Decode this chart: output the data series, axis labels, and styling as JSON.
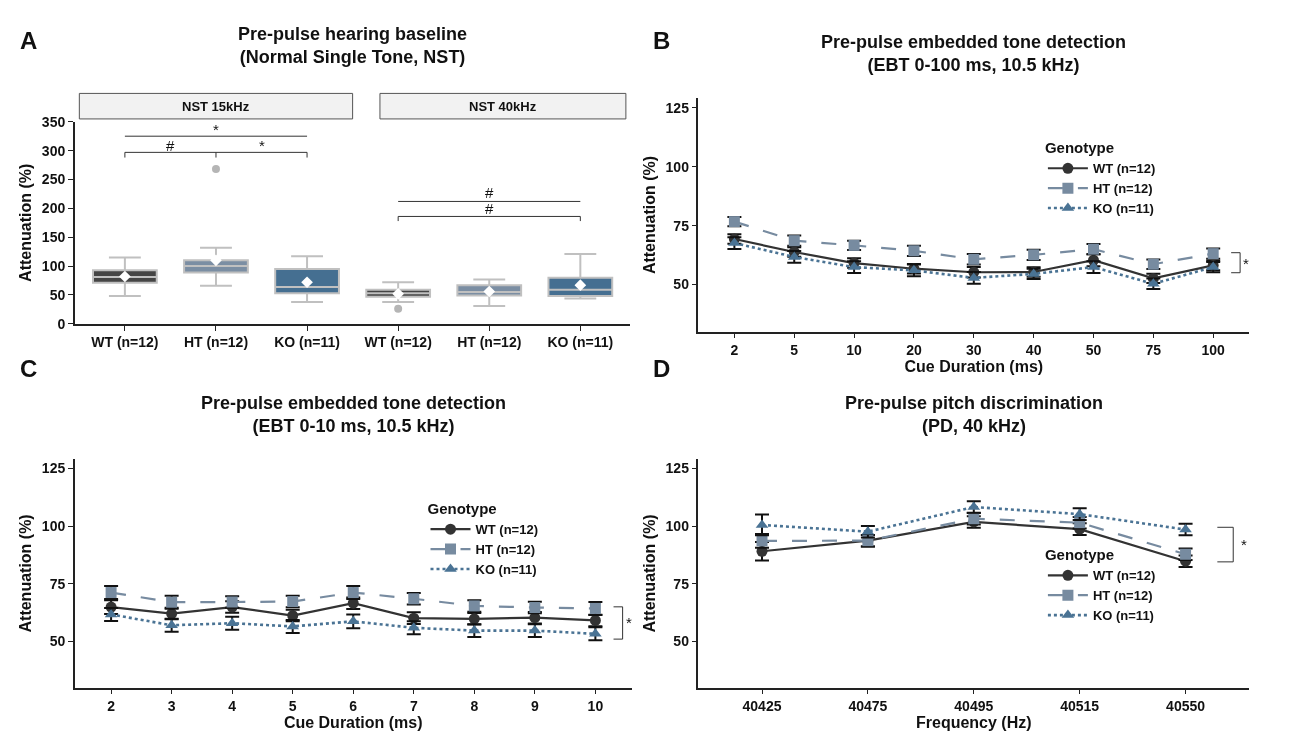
{
  "chart_data": [
    {
      "type": "box",
      "title": "Pre-pulse hearing baseline\n(Normal Single Tone, NST)",
      "ylabel": "Attenuation (%)",
      "categories": [
        "WT (n=12)",
        "HT (n=12)",
        "KO (n=11)",
        "WT (n=12)",
        "HT (n=12)",
        "KO (n=11)"
      ],
      "colors": [
        "#454545",
        "#7b8ea3",
        "#456f91",
        "#454545",
        "#7b8ea3",
        "#456f91"
      ],
      "boxes": [
        {
          "low": 48,
          "q1": 71,
          "median": 81,
          "q3": 93,
          "high": 115,
          "mean": 82
        },
        {
          "low": 66,
          "q1": 89,
          "median": 100,
          "q3": 110,
          "high": 132,
          "mean": 110,
          "outliers": [
            268
          ]
        },
        {
          "low": 38,
          "q1": 53,
          "median": 64,
          "q3": 95,
          "high": 117,
          "mean": 72
        },
        {
          "low": 38,
          "q1": 47,
          "median": 53,
          "q3": 59,
          "high": 72,
          "mean": 52,
          "outliers": [
            26
          ]
        },
        {
          "low": 31,
          "q1": 49,
          "median": 55,
          "q3": 67,
          "high": 77,
          "mean": 56
        },
        {
          "low": 44,
          "q1": 48,
          "median": 59,
          "q3": 80,
          "high": 121,
          "mean": 67
        }
      ],
      "ylim": [
        0,
        350
      ],
      "yticks": [
        0,
        50,
        100,
        150,
        200,
        250,
        300,
        350
      ],
      "annotations": [
        "A",
        "NST 15kHz",
        "NST 40kHz",
        "*",
        "#",
        "*",
        "#",
        "#"
      ]
    },
    {
      "type": "line",
      "title": "Pre-pulse embedded tone detection\n(EBT 0-100 ms, 10.5 kHz)",
      "xlabel": "Cue Duration (ms)",
      "ylabel": "Attenuation (%)",
      "legend_title": "Genotype",
      "legend": "top right",
      "categories": [
        "2",
        "5",
        "10",
        "20",
        "30",
        "40",
        "50",
        "75",
        "100"
      ],
      "ylim": [
        30,
        129
      ],
      "yticks": [
        50,
        75,
        100,
        125
      ],
      "series": [
        {
          "name": "WT (n=12)",
          "color": "#333333",
          "marker": "circle",
          "line_style": "solid",
          "values": [
            69.3,
            63.8,
            59.1,
            56.7,
            55.2,
            55.3,
            60.3,
            52.6,
            58.1
          ],
          "errors": [
            2,
            2,
            2,
            2,
            2.2,
            2,
            2.5,
            2,
            2
          ]
        },
        {
          "name": "HT (n=12)",
          "color": "#778ba0",
          "marker": "square",
          "line_style": "dashed",
          "values": [
            76.7,
            68.6,
            66.6,
            64.3,
            60.7,
            62.6,
            65,
            58.6,
            63.1
          ],
          "errors": [
            2,
            2.2,
            2,
            2.2,
            2.2,
            2.2,
            2.2,
            2,
            2.2
          ]
        },
        {
          "name": "KO (n=11)",
          "color": "#4a7394",
          "marker": "triangle",
          "line_style": "dotted",
          "values": [
            67.6,
            61.7,
            57.4,
            56,
            52.8,
            54.5,
            57.4,
            50.3,
            57.4
          ],
          "errors": [
            2.5,
            2.5,
            2.5,
            2.5,
            2.5,
            2.2,
            2.5,
            2.2,
            2.2
          ]
        }
      ],
      "annotations": [
        "B",
        "*"
      ]
    },
    {
      "type": "line",
      "title": "Pre-pulse embedded tone detection\n(EBT 0-10 ms, 10.5 kHz)",
      "xlabel": "Cue Duration (ms)",
      "ylabel": "Attenuation (%)",
      "legend_title": "Genotype",
      "legend": "top right",
      "categories": [
        "2",
        "3",
        "4",
        "5",
        "6",
        "7",
        "8",
        "9",
        "10"
      ],
      "ylim": [
        30,
        129
      ],
      "yticks": [
        50,
        75,
        100,
        125
      ],
      "series": [
        {
          "name": "WT (n=12)",
          "color": "#333333",
          "marker": "circle",
          "line_style": "solid",
          "values": [
            64.9,
            62.1,
            64.9,
            61.2,
            66.6,
            60.1,
            59.8,
            60.3,
            59.1
          ],
          "errors": [
            3,
            2.5,
            2.5,
            2.5,
            2.5,
            2.5,
            2.5,
            2.5,
            2.5
          ]
        },
        {
          "name": "HT (n=12)",
          "color": "#778ba0",
          "marker": "square",
          "line_style": "dashed",
          "values": [
            71.2,
            67,
            67.1,
            67.3,
            71.2,
            68.5,
            65.4,
            64.7,
            64.3
          ],
          "errors": [
            2.8,
            2.8,
            2.5,
            2.5,
            2.8,
            2.5,
            2.5,
            2.5,
            2.8
          ]
        },
        {
          "name": "KO (n=11)",
          "color": "#4a7394",
          "marker": "triangle",
          "line_style": "dotted",
          "values": [
            61.7,
            57,
            57.9,
            56.5,
            58.7,
            55.9,
            54.7,
            54.7,
            53.3
          ],
          "errors": [
            2.8,
            2.8,
            2.8,
            2.8,
            3,
            2.8,
            2.8,
            2.8,
            2.8
          ]
        }
      ],
      "annotations": [
        "C",
        "*"
      ]
    },
    {
      "type": "line",
      "title": "Pre-pulse pitch discrimination\n(PD, 40 kHz)",
      "xlabel": "Frequency (Hz)",
      "ylabel": "Attenuation (%)",
      "legend_title": "Genotype",
      "legend": "bottom right",
      "categories": [
        "40425",
        "40475",
        "40495",
        "40515",
        "40550"
      ],
      "ylim": [
        30,
        129
      ],
      "yticks": [
        50,
        75,
        100,
        125
      ],
      "series": [
        {
          "name": "WT (n=12)",
          "color": "#333333",
          "marker": "circle",
          "line_style": "solid",
          "values": [
            89.1,
            93.7,
            101.8,
            98.7,
            84.8
          ],
          "errors": [
            4,
            2.5,
            2.5,
            2.5,
            2.5
          ]
        },
        {
          "name": "HT (n=12)",
          "color": "#778ba0",
          "marker": "square",
          "line_style": "dashed",
          "values": [
            93.6,
            93.7,
            103.2,
            101.5,
            87.8
          ],
          "errors": [
            3,
            2.5,
            2.5,
            2.5,
            2.5
          ]
        },
        {
          "name": "KO (n=11)",
          "color": "#4a7394",
          "marker": "triangle",
          "line_style": "dotted",
          "values": [
            100.5,
            97.6,
            108.3,
            105.2,
            98.5
          ],
          "errors": [
            4.5,
            2.5,
            2.5,
            2.5,
            2.5
          ]
        }
      ],
      "annotations": [
        "D",
        "*"
      ]
    }
  ]
}
